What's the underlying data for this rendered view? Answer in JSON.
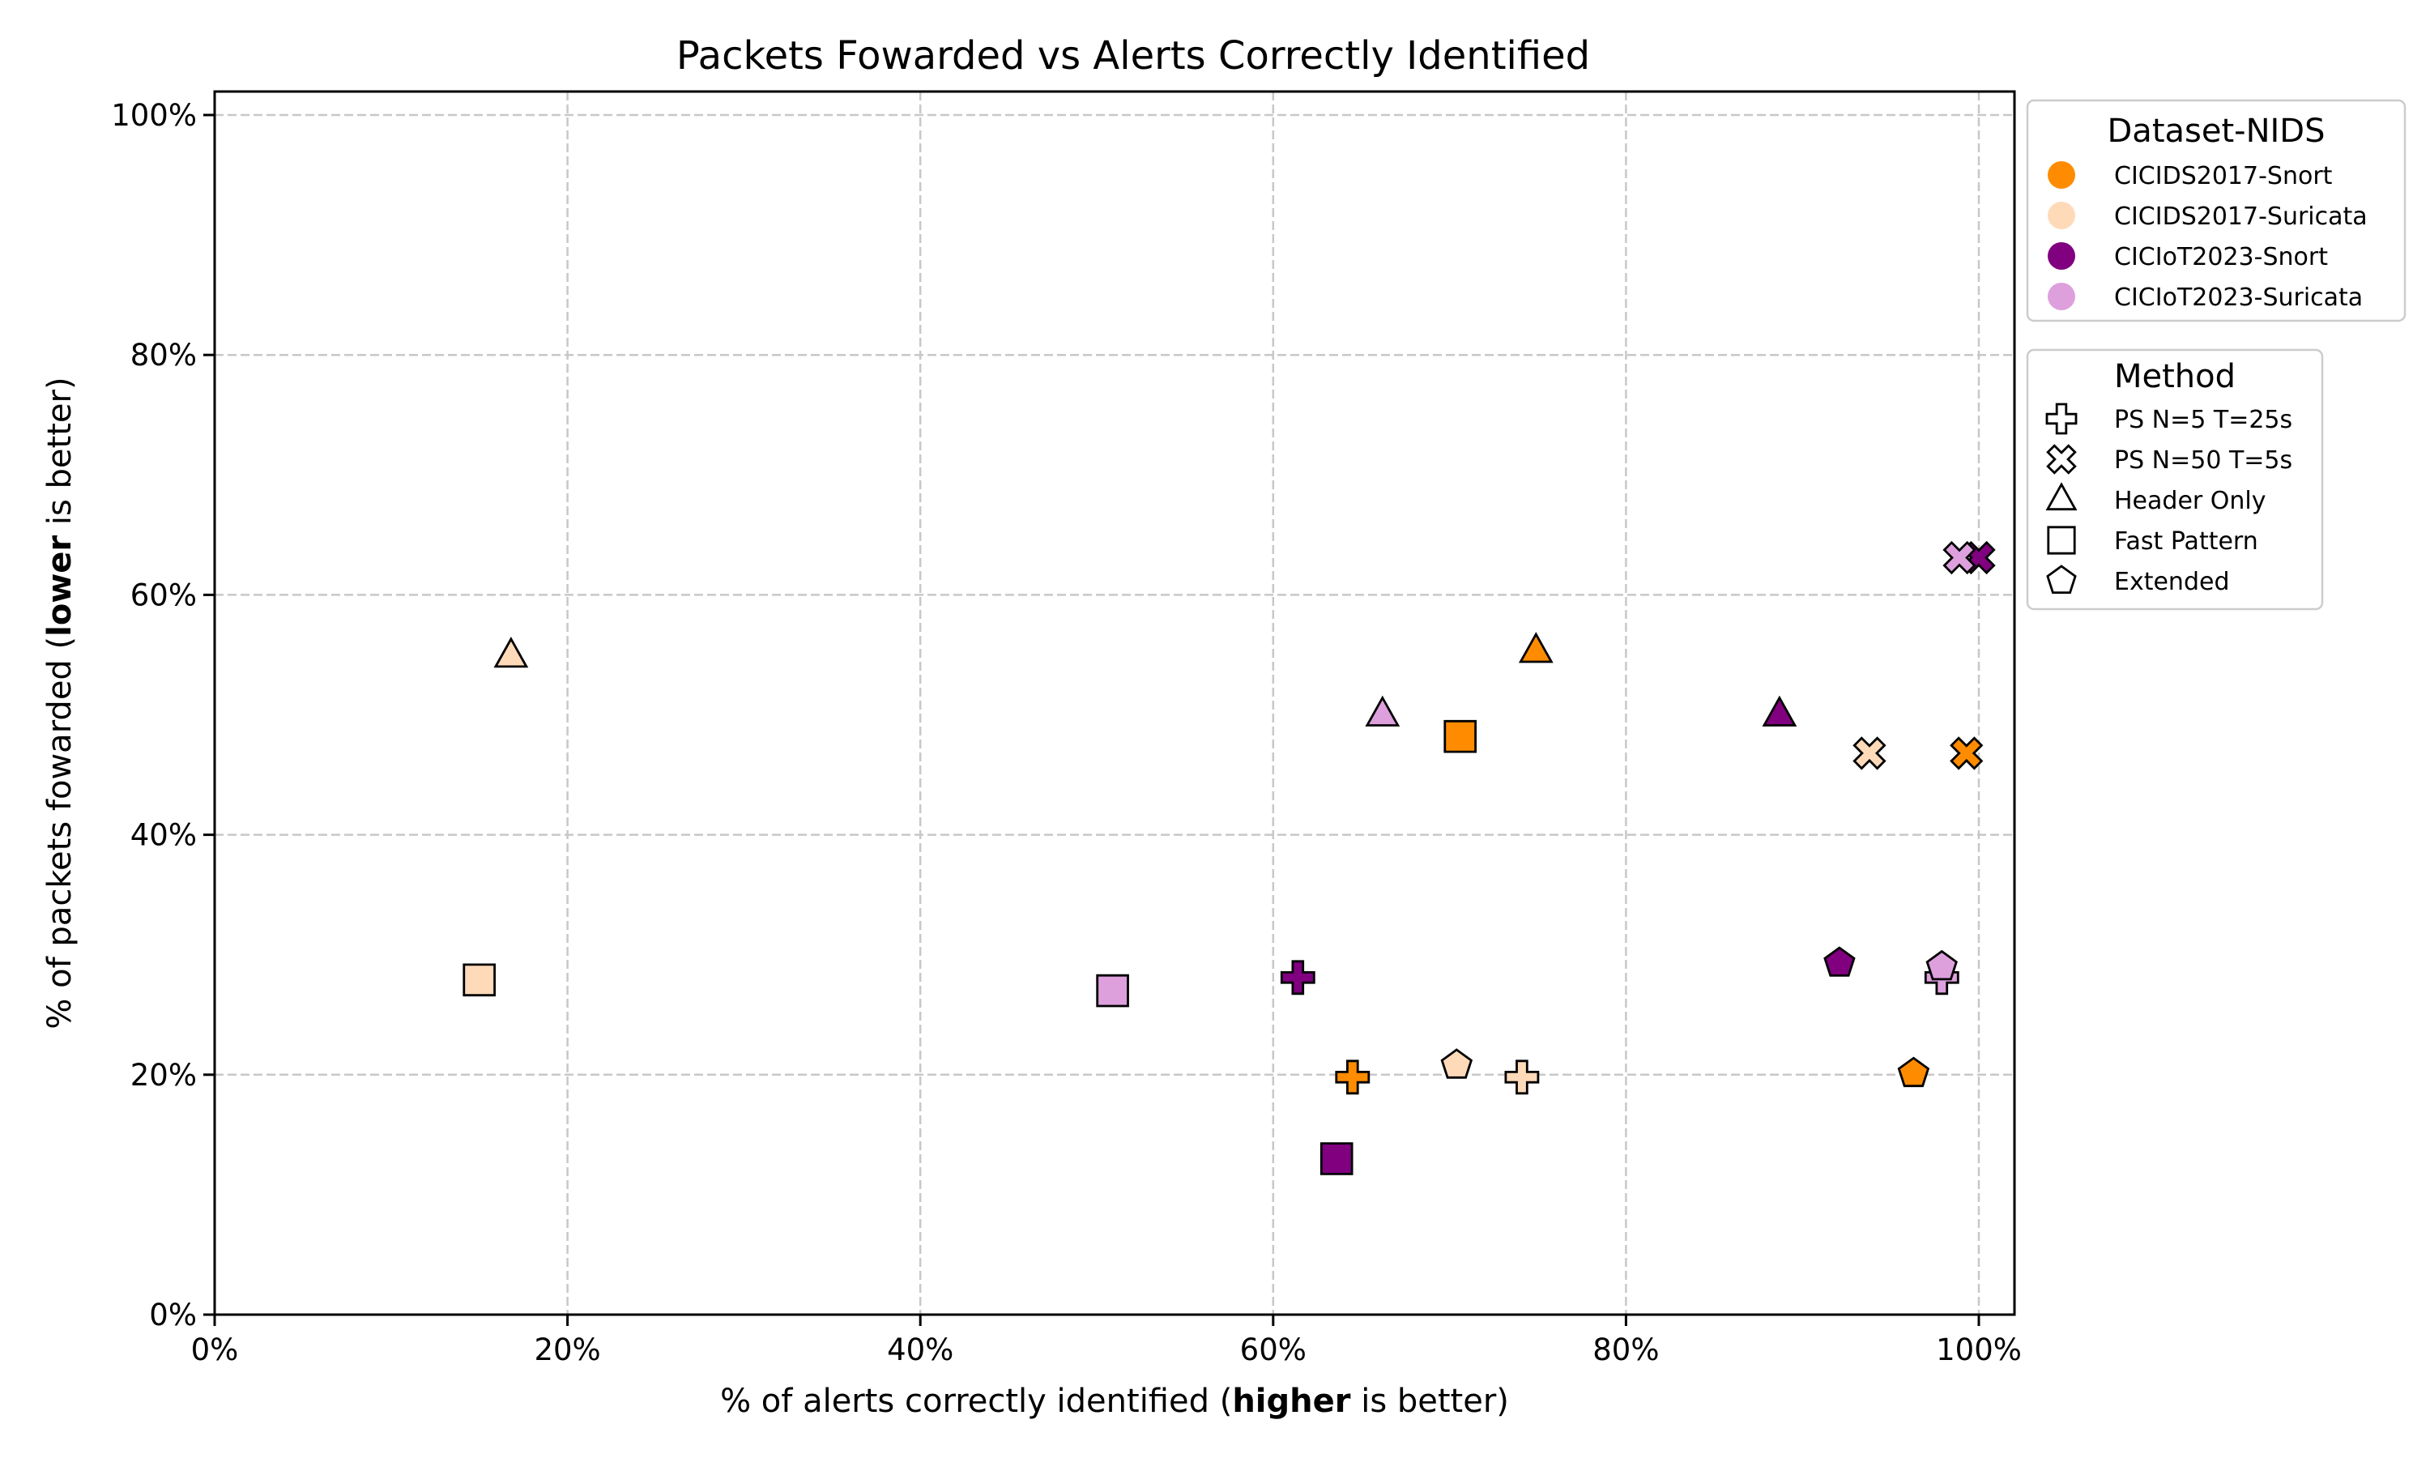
{
  "chart_data": {
    "type": "scatter",
    "title": "Packets Fowarded vs Alerts Correctly Identified",
    "xlabel": {
      "pre": "% of alerts correctly identified (",
      "bold": "higher",
      "post": " is better)"
    },
    "ylabel": {
      "pre": "% of packets fowarded (",
      "bold": "lower",
      "post": " is better)"
    },
    "xlim": [
      0,
      102
    ],
    "ylim": [
      0,
      102
    ],
    "xticks": [
      0,
      20,
      40,
      60,
      80,
      100
    ],
    "yticks": [
      0,
      20,
      40,
      60,
      80,
      100
    ],
    "xtick_labels": [
      "0%",
      "20%",
      "40%",
      "60%",
      "80%",
      "100%"
    ],
    "ytick_labels": [
      "0%",
      "20%",
      "40%",
      "60%",
      "80%",
      "100%"
    ],
    "grid": true,
    "legend_placement": "outside-right",
    "legends": {
      "dataset": {
        "title": "Dataset-NIDS",
        "entries": [
          {
            "key": "cicids2017-snort",
            "label": "CICIDS2017-Snort",
            "color": "#ff8c00"
          },
          {
            "key": "cicids2017-suricata",
            "label": "CICIDS2017-Suricata",
            "color": "#ffdab9"
          },
          {
            "key": "ciciot2023-snort",
            "label": "CICIoT2023-Snort",
            "color": "#800080"
          },
          {
            "key": "ciciot2023-suricata",
            "label": "CICIoT2023-Suricata",
            "color": "#dda0dd"
          }
        ]
      },
      "method": {
        "title": "Method",
        "entries": [
          {
            "key": "ps5",
            "label": "PS N=5 T=25s",
            "marker": "plus"
          },
          {
            "key": "ps50",
            "label": "PS N=50 T=5s",
            "marker": "x"
          },
          {
            "key": "header",
            "label": "Header Only",
            "marker": "triangle"
          },
          {
            "key": "fast",
            "label": "Fast Pattern",
            "marker": "square"
          },
          {
            "key": "ext",
            "label": "Extended",
            "marker": "pentagon"
          }
        ]
      }
    },
    "series": [
      {
        "dataset": "cicids2017-snort",
        "points": [
          {
            "method": "ps5",
            "x": 64.5,
            "y": 19.8
          },
          {
            "method": "ps50",
            "x": 99.3,
            "y": 46.8
          },
          {
            "method": "header",
            "x": 74.9,
            "y": 55.3
          },
          {
            "method": "fast",
            "x": 70.6,
            "y": 48.2
          },
          {
            "method": "ext",
            "x": 96.3,
            "y": 20.1
          }
        ]
      },
      {
        "dataset": "cicids2017-suricata",
        "points": [
          {
            "method": "ps5",
            "x": 74.1,
            "y": 19.8
          },
          {
            "method": "ps50",
            "x": 93.8,
            "y": 46.8
          },
          {
            "method": "header",
            "x": 16.8,
            "y": 54.9
          },
          {
            "method": "fast",
            "x": 15.0,
            "y": 27.9
          },
          {
            "method": "ext",
            "x": 70.4,
            "y": 20.8
          }
        ]
      },
      {
        "dataset": "ciciot2023-snort",
        "points": [
          {
            "method": "ps5",
            "x": 61.4,
            "y": 28.1
          },
          {
            "method": "ps50",
            "x": 100.0,
            "y": 63.1
          },
          {
            "method": "header",
            "x": 88.7,
            "y": 50.0
          },
          {
            "method": "fast",
            "x": 63.6,
            "y": 13.0
          },
          {
            "method": "ext",
            "x": 92.1,
            "y": 29.3
          }
        ]
      },
      {
        "dataset": "ciciot2023-suricata",
        "points": [
          {
            "method": "ps5",
            "x": 97.9,
            "y": 28.1
          },
          {
            "method": "ps50",
            "x": 98.9,
            "y": 63.1
          },
          {
            "method": "header",
            "x": 66.2,
            "y": 50.0
          },
          {
            "method": "fast",
            "x": 50.9,
            "y": 27.0
          },
          {
            "method": "ext",
            "x": 97.9,
            "y": 29.0
          }
        ]
      }
    ]
  }
}
